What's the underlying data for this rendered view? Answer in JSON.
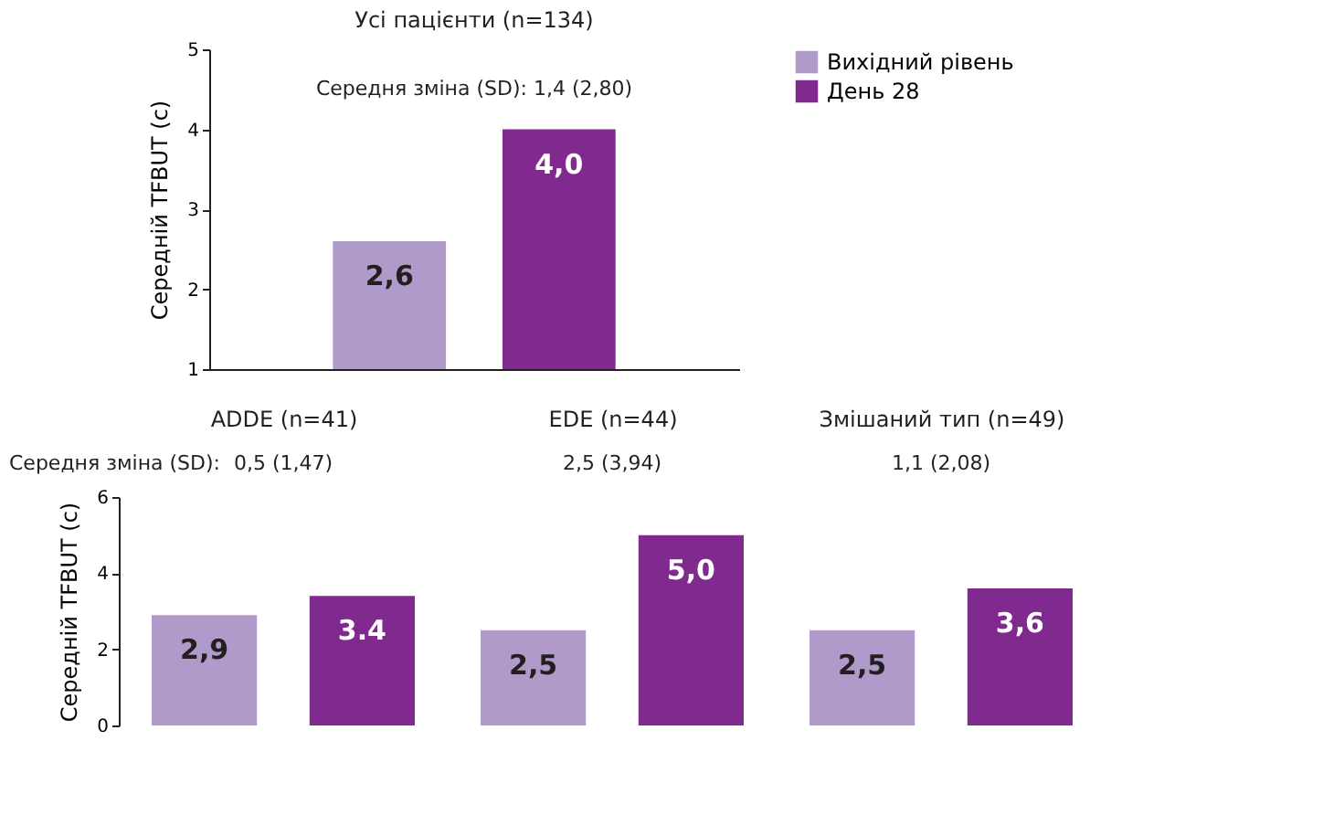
{
  "chart_data": [
    {
      "type": "bar",
      "title": "Усі пацієнти (n=134)",
      "ylabel": "Середній TFBUT (с)",
      "categories": [
        null
      ],
      "ylim": [
        1,
        5
      ],
      "yticks": [
        1,
        2,
        3,
        4,
        5
      ],
      "grid": false,
      "legend": "top right",
      "series": [
        {
          "name": "Вихідний рівень",
          "color": "#b09ac9",
          "values": [
            2.6
          ],
          "value_labels": [
            "2,6"
          ]
        },
        {
          "name": "День 28",
          "color": "#80298f",
          "values": [
            4.0
          ],
          "value_labels": [
            "4,0"
          ]
        }
      ],
      "annotations": [
        "Середня зміна (SD): 1,4 (2,80)"
      ]
    },
    {
      "type": "bar",
      "ylabel": "Середній TFBUT (с)",
      "categories": [
        "ADDE (n=41)",
        "EDE (n=44)",
        "Змішаний тип (n=49)"
      ],
      "ylim": [
        0,
        6
      ],
      "yticks": [
        0,
        2,
        4,
        6
      ],
      "grid": false,
      "series": [
        {
          "color": "#b09ac9",
          "values": [
            2.9,
            2.5,
            2.5
          ],
          "value_labels": [
            "2,9",
            "2,5",
            "2,5"
          ]
        },
        {
          "color": "#80298f",
          "values": [
            3.4,
            5.0,
            3.6
          ],
          "value_labels": [
            "3.4",
            "5,0",
            "3,6"
          ]
        }
      ],
      "annotations": [
        "Середня зміна (SD):",
        "0,5  (1,47)",
        "2,5 (3,94)",
        "1,1  (2,08)"
      ]
    }
  ]
}
